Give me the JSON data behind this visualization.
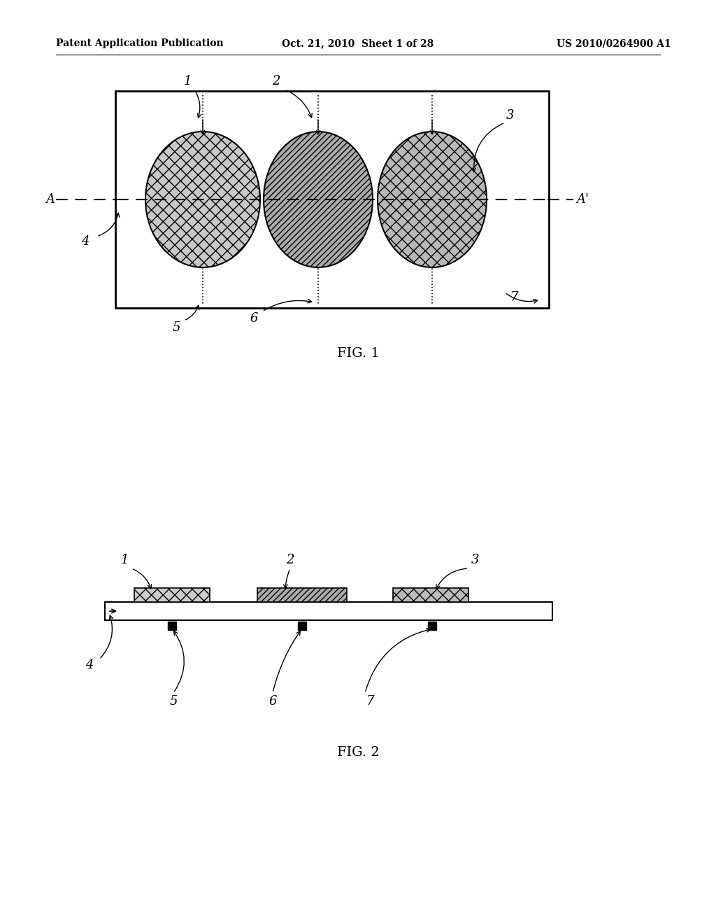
{
  "bg_color": "#ffffff",
  "header_left": "Patent Application Publication",
  "header_mid": "Oct. 21, 2010  Sheet 1 of 28",
  "header_right": "US 2010/0264900 A1",
  "fig1_caption": "FIG. 1",
  "fig2_caption": "FIG. 2"
}
